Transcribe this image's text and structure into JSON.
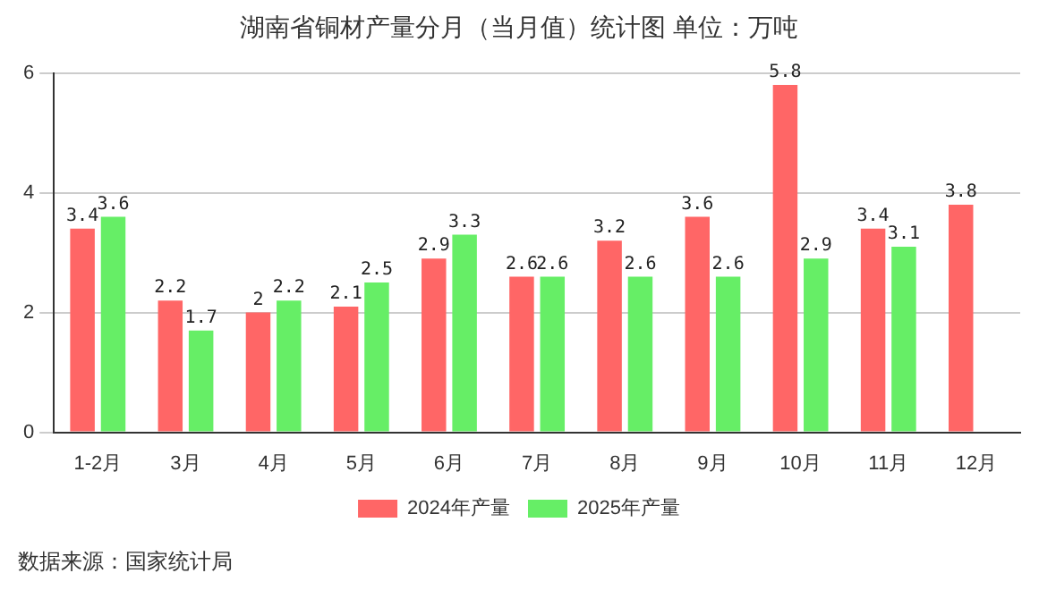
{
  "chart_data": {
    "type": "bar",
    "title": "湖南省铜材产量分月（当月值）统计图 单位：万吨",
    "categories": [
      "1-2月",
      "3月",
      "4月",
      "5月",
      "6月",
      "7月",
      "8月",
      "9月",
      "10月",
      "11月",
      "12月"
    ],
    "series": [
      {
        "name": "2024年产量",
        "color": "#ff6666",
        "values": [
          3.4,
          2.2,
          2,
          2.1,
          2.9,
          2.6,
          3.2,
          3.6,
          5.8,
          3.4,
          3.8
        ]
      },
      {
        "name": "2025年产量",
        "color": "#66ee66",
        "values": [
          3.6,
          1.7,
          2.2,
          2.5,
          3.3,
          2.6,
          2.6,
          2.6,
          2.9,
          3.1,
          null
        ]
      }
    ],
    "ylim": [
      0,
      6
    ],
    "yticks": [
      0,
      2,
      4,
      6
    ],
    "grid": "y",
    "legend": "bottom",
    "data_labels": true,
    "annotations": [
      "数据来源：国家统计局"
    ]
  }
}
